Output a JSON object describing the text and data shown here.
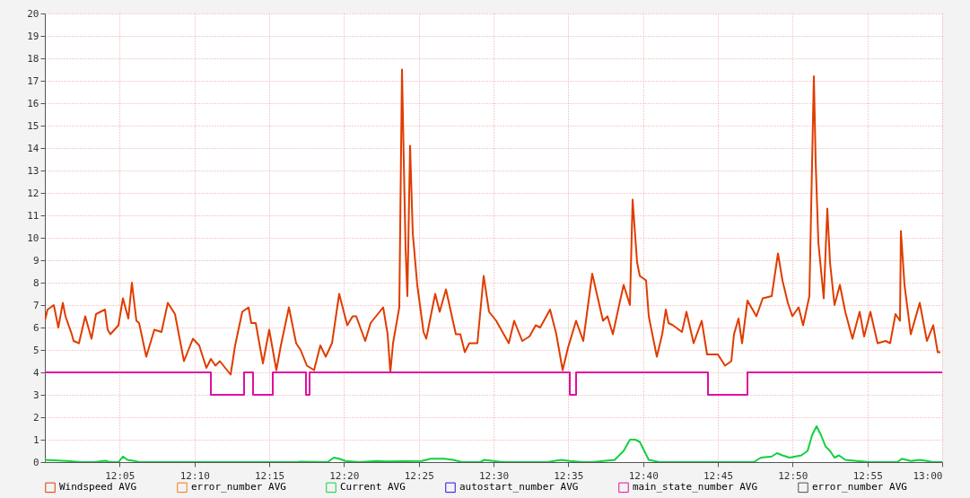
{
  "chart_data": {
    "type": "line",
    "xlim": [
      12,
      13
    ],
    "ylim": [
      0,
      20
    ],
    "xticks": [
      {
        "value": 12.0833,
        "label": "12:05"
      },
      {
        "value": 12.1667,
        "label": "12:10"
      },
      {
        "value": 12.25,
        "label": "12:15"
      },
      {
        "value": 12.3333,
        "label": "12:20"
      },
      {
        "value": 12.4167,
        "label": "12:25"
      },
      {
        "value": 12.5,
        "label": "12:30"
      },
      {
        "value": 12.5833,
        "label": "12:35"
      },
      {
        "value": 12.6667,
        "label": "12:40"
      },
      {
        "value": 12.75,
        "label": "12:45"
      },
      {
        "value": 12.8333,
        "label": "12:50"
      },
      {
        "value": 12.9167,
        "label": "12:55"
      },
      {
        "value": 13,
        "label": "13:00"
      }
    ],
    "yticks": [
      0,
      1,
      2,
      3,
      4,
      5,
      6,
      7,
      8,
      9,
      10,
      11,
      12,
      13,
      14,
      15,
      16,
      17,
      18,
      19,
      20
    ],
    "grid": true,
    "legend": "bottom",
    "series": [
      {
        "name": "Windspeed AVG",
        "color": "#e03c00",
        "x": [
          12.0,
          12.003,
          12.01,
          12.015,
          12.02,
          12.023,
          12.03,
          12.032,
          12.038,
          12.045,
          12.052,
          12.057,
          12.067,
          12.07,
          12.073,
          12.082,
          12.087,
          12.093,
          12.097,
          12.102,
          12.105,
          12.113,
          12.122,
          12.13,
          12.137,
          12.145,
          12.155,
          12.165,
          12.172,
          12.18,
          12.185,
          12.19,
          12.195,
          12.207,
          12.212,
          12.22,
          12.227,
          12.23,
          12.235,
          12.243,
          12.25,
          12.258,
          12.263,
          12.272,
          12.28,
          12.285,
          12.292,
          12.3,
          12.307,
          12.313,
          12.32,
          12.328,
          12.337,
          12.343,
          12.347,
          12.357,
          12.363,
          12.377,
          12.382,
          12.385,
          12.388,
          12.395,
          12.398,
          12.4,
          12.402,
          12.404,
          12.407,
          12.41,
          12.415,
          12.422,
          12.425,
          12.435,
          12.44,
          12.447,
          12.458,
          12.463,
          12.468,
          12.473,
          12.482,
          12.489,
          12.495,
          12.503,
          12.517,
          12.523,
          12.532,
          12.54,
          12.547,
          12.552,
          12.563,
          12.57,
          12.577,
          12.583,
          12.592,
          12.6,
          12.61,
          12.622,
          12.627,
          12.633,
          12.64,
          12.645,
          12.652,
          12.655,
          12.66,
          12.663,
          12.67,
          12.673,
          12.682,
          12.688,
          12.692,
          12.695,
          12.7,
          12.71,
          12.715,
          12.723,
          12.732,
          12.738,
          12.75,
          12.758,
          12.765,
          12.768,
          12.773,
          12.777,
          12.783,
          12.793,
          12.8,
          12.81,
          12.817,
          12.822,
          12.828,
          12.833,
          12.84,
          12.845,
          12.852,
          12.857,
          12.859,
          12.862,
          12.868,
          12.872,
          12.875,
          12.88,
          12.886,
          12.892,
          12.9,
          12.908,
          12.913,
          12.92,
          12.928,
          12.937,
          12.942,
          12.948,
          12.953,
          12.954,
          12.958,
          12.965,
          12.975,
          12.983,
          12.99,
          12.995,
          12.998
        ],
        "values": [
          6.3,
          6.8,
          7.0,
          6.0,
          7.1,
          6.5,
          5.7,
          5.4,
          5.3,
          6.5,
          5.5,
          6.6,
          6.8,
          5.9,
          5.7,
          6.1,
          7.3,
          6.4,
          8.0,
          6.3,
          6.2,
          4.7,
          5.9,
          5.8,
          7.1,
          6.6,
          4.5,
          5.5,
          5.2,
          4.2,
          4.6,
          4.3,
          4.5,
          3.9,
          5.2,
          6.7,
          6.9,
          6.2,
          6.2,
          4.4,
          5.9,
          4.1,
          5.2,
          6.9,
          5.3,
          5.0,
          4.3,
          4.1,
          5.2,
          4.7,
          5.3,
          7.5,
          6.1,
          6.5,
          6.5,
          5.4,
          6.2,
          6.9,
          5.7,
          4.0,
          5.3,
          6.9,
          17.5,
          13.4,
          9.5,
          7.4,
          14.1,
          10.2,
          7.9,
          5.8,
          5.5,
          7.5,
          6.7,
          7.7,
          5.7,
          5.7,
          4.9,
          5.3,
          5.3,
          8.3,
          6.7,
          6.3,
          5.3,
          6.3,
          5.4,
          5.6,
          6.1,
          6.0,
          6.8,
          5.7,
          4.1,
          5.1,
          6.3,
          5.4,
          8.4,
          6.3,
          6.5,
          5.7,
          7.0,
          7.9,
          7.0,
          11.7,
          8.9,
          8.3,
          8.1,
          6.5,
          4.7,
          5.7,
          6.8,
          6.2,
          6.1,
          5.8,
          6.7,
          5.3,
          6.3,
          4.8,
          4.8,
          4.3,
          4.5,
          5.7,
          6.4,
          5.3,
          7.2,
          6.5,
          7.3,
          7.4,
          9.3,
          8.1,
          7.1,
          6.5,
          6.9,
          6.1,
          7.4,
          17.2,
          13.4,
          9.8,
          7.3,
          11.3,
          8.9,
          7.0,
          7.9,
          6.7,
          5.5,
          6.7,
          5.6,
          6.7,
          5.3,
          5.4,
          5.3,
          6.6,
          6.3,
          10.3,
          7.9,
          5.7,
          7.1,
          5.4,
          6.1,
          4.9,
          4.9
        ]
      },
      {
        "name": "error_number AVG",
        "color": "#f07c10"
      },
      {
        "name": "Current AVG",
        "color": "#10d040",
        "x": [
          12.0,
          12.01,
          12.025,
          12.04,
          12.055,
          12.065,
          12.068,
          12.072,
          12.082,
          12.087,
          12.092,
          12.1,
          12.105,
          12.28,
          12.285,
          12.315,
          12.322,
          12.328,
          12.335,
          12.35,
          12.37,
          12.38,
          12.42,
          12.43,
          12.445,
          12.455,
          12.465,
          12.485,
          12.49,
          12.5,
          12.51,
          12.55,
          12.56,
          12.575,
          12.585,
          12.6,
          12.61,
          12.635,
          12.645,
          12.652,
          12.658,
          12.663,
          12.668,
          12.673,
          12.685,
          12.79,
          12.798,
          12.81,
          12.816,
          12.822,
          12.83,
          12.843,
          12.85,
          12.855,
          12.86,
          12.865,
          12.87,
          12.875,
          12.88,
          12.885,
          12.892,
          12.905,
          12.92,
          12.95,
          12.955,
          12.965,
          12.975,
          12.983,
          12.99,
          13.0
        ],
        "values": [
          0.1,
          0.08,
          0.05,
          0.0,
          0.0,
          0.05,
          0.06,
          0.0,
          0.0,
          0.25,
          0.1,
          0.05,
          0.0,
          0.0,
          0.02,
          0.0,
          0.2,
          0.15,
          0.05,
          0.0,
          0.05,
          0.03,
          0.05,
          0.15,
          0.15,
          0.1,
          0.0,
          0.0,
          0.1,
          0.05,
          0.0,
          0.0,
          0.0,
          0.1,
          0.05,
          0.0,
          0.0,
          0.1,
          0.5,
          1.0,
          1.0,
          0.9,
          0.5,
          0.1,
          0.0,
          0.0,
          0.2,
          0.25,
          0.4,
          0.3,
          0.2,
          0.3,
          0.5,
          1.2,
          1.6,
          1.2,
          0.7,
          0.5,
          0.2,
          0.3,
          0.1,
          0.05,
          0.0,
          0.0,
          0.15,
          0.05,
          0.1,
          0.05,
          0.0,
          0.0
        ]
      },
      {
        "name": "autostart_number AVG",
        "color": "#2a10e0"
      },
      {
        "name": "main_state_number AVG",
        "color": "#e010a0",
        "type": "step",
        "x": [
          12.0,
          12.185,
          12.222,
          12.232,
          12.254,
          12.291,
          12.295,
          12.585,
          12.592,
          12.739,
          12.783,
          13.0
        ],
        "values": [
          4,
          3,
          4,
          3,
          4,
          3,
          4,
          3,
          4,
          3,
          4,
          4
        ]
      },
      {
        "name": "error_number AVG",
        "color": "#505050"
      }
    ]
  }
}
